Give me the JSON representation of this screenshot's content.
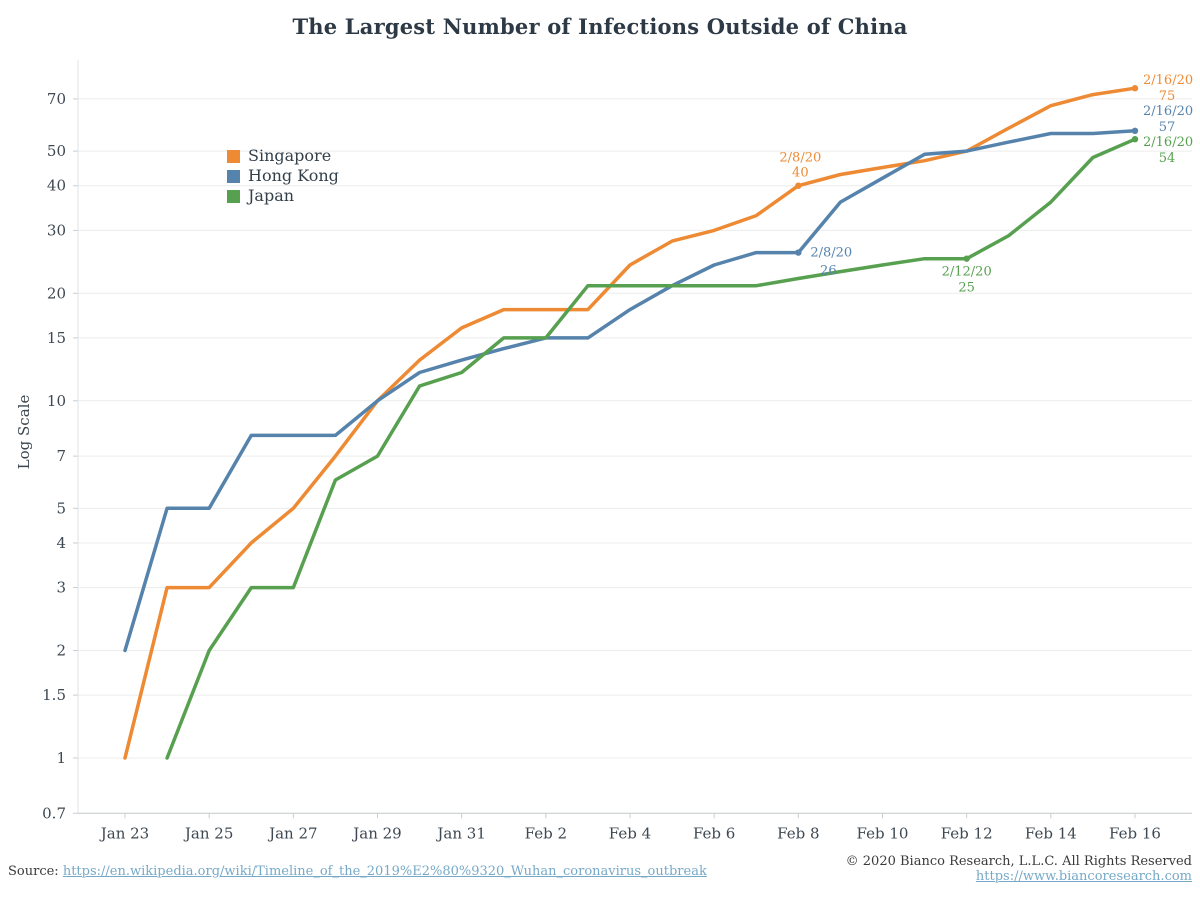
{
  "chart_data": {
    "type": "line",
    "title": "The Largest Number of Infections Outside of China",
    "ylabel": "Log Scale",
    "y_scale": "log",
    "ylim": [
      0.7,
      90
    ],
    "grid": "horizontal-only",
    "legend_position": "upper-left-inside",
    "y_ticks": [
      70,
      50,
      40,
      30,
      20,
      15,
      10,
      7,
      5,
      4,
      3,
      2,
      1.5,
      1,
      0.7
    ],
    "x_tick_labels": [
      "Jan 23",
      "Jan 25",
      "Jan 27",
      "Jan 29",
      "Jan 31",
      "Feb 2",
      "Feb 4",
      "Feb 6",
      "Feb 8",
      "Feb 10",
      "Feb 12",
      "Feb 14",
      "Feb 16"
    ],
    "dates": [
      "Jan 23",
      "Jan 24",
      "Jan 25",
      "Jan 26",
      "Jan 27",
      "Jan 28",
      "Jan 29",
      "Jan 30",
      "Jan 31",
      "Feb 1",
      "Feb 2",
      "Feb 3",
      "Feb 4",
      "Feb 5",
      "Feb 6",
      "Feb 7",
      "Feb 8",
      "Feb 9",
      "Feb 10",
      "Feb 11",
      "Feb 12",
      "Feb 13",
      "Feb 14",
      "Feb 15",
      "Feb 16"
    ],
    "series": [
      {
        "name": "Singapore",
        "color": "#ED8A33",
        "values": [
          1,
          3,
          3,
          4,
          5,
          7,
          10,
          13,
          16,
          18,
          18,
          18,
          24,
          28,
          30,
          33,
          40,
          43,
          45,
          47,
          50,
          58,
          67,
          72,
          75
        ]
      },
      {
        "name": "Hong Kong",
        "color": "#5683AC",
        "values": [
          2,
          5,
          5,
          8,
          8,
          8,
          10,
          12,
          13,
          14,
          15,
          15,
          18,
          21,
          24,
          26,
          26,
          36,
          42,
          49,
          50,
          53,
          56,
          56,
          57
        ]
      },
      {
        "name": "Japan",
        "color": "#57A04F",
        "values": [
          null,
          1,
          2,
          3,
          3,
          6,
          7,
          11,
          12,
          15,
          15,
          21,
          21,
          21,
          21,
          21,
          22,
          23,
          24,
          25,
          25,
          29,
          36,
          48,
          54
        ]
      }
    ],
    "annotations": [
      {
        "series": "Singapore",
        "date": "2/8/20",
        "value": 40,
        "day": 16,
        "placement": "above"
      },
      {
        "series": "Hong Kong",
        "date": "2/8/20",
        "value": 26,
        "day": 16,
        "placement": "right"
      },
      {
        "series": "Japan",
        "date": "2/12/20",
        "value": 25,
        "day": 20,
        "placement": "below"
      },
      {
        "series": "Singapore",
        "date": "2/16/20",
        "value": 75,
        "day": 24,
        "placement": "end"
      },
      {
        "series": "Hong Kong",
        "date": "2/16/20",
        "value": 57,
        "day": 24,
        "placement": "end"
      },
      {
        "series": "Japan",
        "date": "2/16/20",
        "value": 54,
        "day": 24,
        "placement": "end"
      }
    ]
  },
  "colors": {
    "singapore": "#ED8A33",
    "hong_kong": "#5683AC",
    "japan": "#57A04F",
    "link": "#76A9C8",
    "title_text": "#2D3A46",
    "tick_text": "#3D4852",
    "gridline": "#ECECEC"
  },
  "footer": {
    "source_label": "Source:",
    "source_url": "https://en.wikipedia.org/wiki/Timeline_of_the_2019%E2%80%9320_Wuhan_coronavirus_outbreak",
    "copyright": "© 2020 Bianco Research, L.L.C. All Rights Reserved",
    "site_url": "https://www.biancoresearch.com"
  }
}
